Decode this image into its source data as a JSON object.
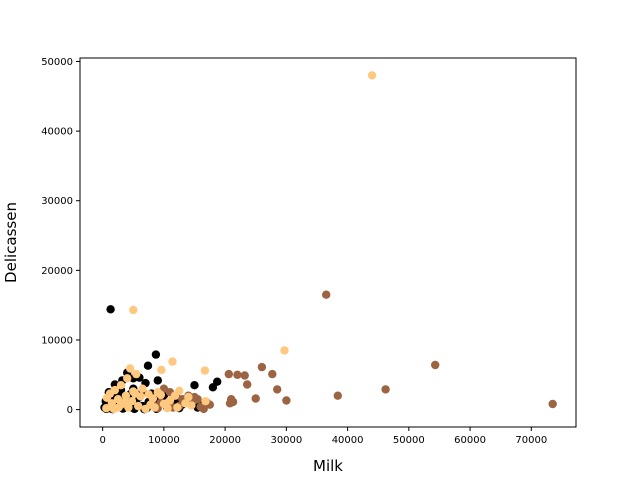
{
  "chart_data": {
    "type": "scatter",
    "title": "",
    "xlabel": "Milk",
    "ylabel": "Delicassen",
    "xlim": [
      -3700,
      77300
    ],
    "ylim": [
      -2500,
      50500
    ],
    "xticks": [
      0,
      10000,
      20000,
      30000,
      40000,
      50000,
      60000,
      70000
    ],
    "yticks": [
      0,
      10000,
      20000,
      30000,
      40000,
      50000
    ],
    "grid": false,
    "legend": "none",
    "series": [
      {
        "color": "#000000",
        "points": [
          [
            1300,
            14400
          ],
          [
            8700,
            7900
          ],
          [
            7400,
            6300
          ],
          [
            6000,
            4600
          ],
          [
            4000,
            5300
          ],
          [
            3200,
            4200
          ],
          [
            2000,
            3600
          ],
          [
            5000,
            4500
          ],
          [
            7000,
            3800
          ],
          [
            9000,
            4200
          ],
          [
            15000,
            3500
          ],
          [
            18000,
            3200
          ],
          [
            18700,
            4000
          ],
          [
            1000,
            2500
          ],
          [
            3000,
            2800
          ],
          [
            5000,
            3000
          ],
          [
            6500,
            2600
          ],
          [
            8000,
            2300
          ],
          [
            10000,
            2000
          ],
          [
            1500,
            1800
          ],
          [
            2500,
            2000
          ],
          [
            4500,
            2200
          ],
          [
            6000,
            1800
          ],
          [
            8500,
            1500
          ],
          [
            12000,
            1200
          ],
          [
            500,
            1200
          ],
          [
            1800,
            1300
          ],
          [
            3500,
            1500
          ],
          [
            5500,
            1000
          ],
          [
            7500,
            1100
          ],
          [
            9500,
            900
          ],
          [
            11000,
            800
          ],
          [
            13000,
            700
          ],
          [
            14000,
            1000
          ],
          [
            16000,
            600
          ],
          [
            800,
            600
          ],
          [
            2200,
            700
          ],
          [
            4000,
            800
          ],
          [
            6500,
            500
          ],
          [
            9000,
            400
          ],
          [
            10500,
            300
          ],
          [
            12500,
            200
          ],
          [
            15500,
            300
          ],
          [
            300,
            300
          ],
          [
            1200,
            200
          ],
          [
            2800,
            400
          ],
          [
            4800,
            300
          ],
          [
            7200,
            200
          ],
          [
            8800,
            100
          ],
          [
            600,
            100
          ],
          [
            1600,
            50
          ],
          [
            3300,
            150
          ],
          [
            5200,
            100
          ],
          [
            6800,
            50
          ],
          [
            2000,
            900
          ]
        ]
      },
      {
        "color": "#9c6442",
        "points": [
          [
            73500,
            800
          ],
          [
            54300,
            6400
          ],
          [
            46200,
            2900
          ],
          [
            38400,
            2000
          ],
          [
            36500,
            16500
          ],
          [
            30000,
            1300
          ],
          [
            28500,
            2900
          ],
          [
            27700,
            5100
          ],
          [
            26000,
            6100
          ],
          [
            25000,
            1600
          ],
          [
            23600,
            3600
          ],
          [
            23200,
            4900
          ],
          [
            22000,
            5000
          ],
          [
            21300,
            1100
          ],
          [
            21000,
            1500
          ],
          [
            20600,
            5100
          ],
          [
            20800,
            900
          ],
          [
            17000,
            1000
          ],
          [
            16500,
            100
          ],
          [
            15000,
            1800
          ],
          [
            14000,
            2000
          ],
          [
            13000,
            1500
          ],
          [
            12000,
            2000
          ],
          [
            11000,
            2500
          ],
          [
            10000,
            3000
          ],
          [
            9500,
            1000
          ],
          [
            8500,
            500
          ],
          [
            12500,
            500
          ],
          [
            14500,
            900
          ],
          [
            16000,
            400
          ],
          [
            11500,
            300
          ],
          [
            13500,
            1200
          ],
          [
            15500,
            1500
          ],
          [
            17500,
            700
          ],
          [
            9000,
            200
          ]
        ]
      },
      {
        "color": "#ffc87f",
        "points": [
          [
            44000,
            48000
          ],
          [
            5000,
            14300
          ],
          [
            29700,
            8500
          ],
          [
            11400,
            6900
          ],
          [
            9600,
            5700
          ],
          [
            16700,
            5600
          ],
          [
            4500,
            5900
          ],
          [
            5500,
            5100
          ],
          [
            4000,
            4500
          ],
          [
            3000,
            3500
          ],
          [
            2000,
            2800
          ],
          [
            1200,
            2300
          ],
          [
            700,
            1700
          ],
          [
            2500,
            1500
          ],
          [
            3800,
            2000
          ],
          [
            5000,
            2600
          ],
          [
            6500,
            3000
          ],
          [
            7500,
            2200
          ],
          [
            8200,
            1600
          ],
          [
            9500,
            2100
          ],
          [
            11000,
            1300
          ],
          [
            12500,
            2700
          ],
          [
            13500,
            900
          ],
          [
            14500,
            600
          ],
          [
            1500,
            900
          ],
          [
            3000,
            700
          ],
          [
            4200,
            300
          ],
          [
            5800,
            500
          ],
          [
            7000,
            100
          ],
          [
            8500,
            300
          ],
          [
            10000,
            800
          ],
          [
            11800,
            2000
          ],
          [
            600,
            200
          ],
          [
            1800,
            100
          ],
          [
            2600,
            300
          ],
          [
            3600,
            1100
          ],
          [
            4800,
            1200
          ],
          [
            6200,
            1900
          ],
          [
            7800,
            700
          ],
          [
            9000,
            2500
          ],
          [
            16800,
            1200
          ],
          [
            14000,
            1800
          ],
          [
            12200,
            300
          ],
          [
            10600,
            200
          ],
          [
            5300,
            2300
          ]
        ]
      }
    ]
  }
}
